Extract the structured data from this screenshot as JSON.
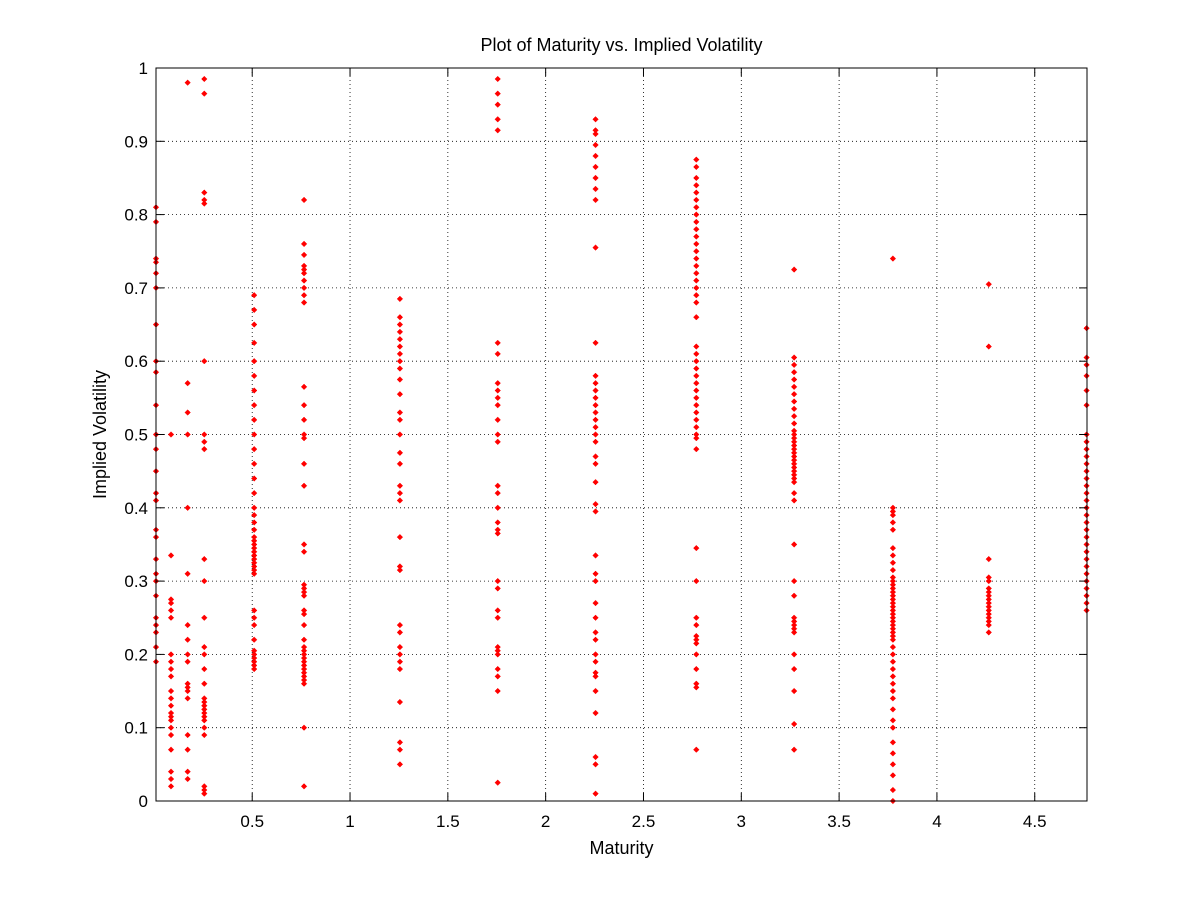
{
  "chart_data": {
    "type": "scatter",
    "title": "Plot of Maturity vs. Implied Volatility",
    "xlabel": "Maturity",
    "ylabel": "Implied Volatility",
    "xlim": [
      0.0082,
      4.7671
    ],
    "ylim": [
      0,
      1
    ],
    "xticks": [
      0.5,
      1,
      1.5,
      2,
      2.5,
      3,
      3.5,
      4,
      4.5
    ],
    "xtick_labels": [
      "0.5",
      "1",
      "1.5",
      "2",
      "2.5",
      "3",
      "3.5",
      "4",
      "4.5"
    ],
    "yticks": [
      0,
      0.1,
      0.2,
      0.3,
      0.4,
      0.5,
      0.6,
      0.7,
      0.8,
      0.9,
      1
    ],
    "ytick_labels": [
      "0",
      "0.1",
      "0.2",
      "0.3",
      "0.4",
      "0.5",
      "0.6",
      "0.7",
      "0.8",
      "0.9",
      "1"
    ],
    "grid": true,
    "marker_color": "#ff0000",
    "series": [
      {
        "name": "Implied Volatility",
        "x": 0.0082,
        "y": [
          0.81,
          0.79,
          0.74,
          0.735,
          0.72,
          0.7,
          0.65,
          0.6,
          0.585,
          0.54,
          0.5,
          0.48,
          0.45,
          0.42,
          0.41,
          0.37,
          0.36,
          0.33,
          0.31,
          0.3,
          0.28,
          0.25,
          0.24,
          0.23,
          0.21,
          0.19
        ]
      },
      {
        "name": "Implied Volatility",
        "x": 0.085,
        "y": [
          0.5,
          0.335,
          0.275,
          0.27,
          0.26,
          0.25,
          0.2,
          0.19,
          0.18,
          0.17,
          0.15,
          0.14,
          0.13,
          0.12,
          0.115,
          0.11,
          0.1,
          0.09,
          0.07,
          0.04,
          0.03,
          0.02
        ]
      },
      {
        "name": "Implied Volatility",
        "x": 0.17,
        "y": [
          0.98,
          0.57,
          0.53,
          0.5,
          0.4,
          0.31,
          0.24,
          0.22,
          0.2,
          0.19,
          0.16,
          0.155,
          0.15,
          0.14,
          0.09,
          0.07,
          0.04,
          0.03
        ]
      },
      {
        "name": "Implied Volatility",
        "x": 0.255,
        "y": [
          0.985,
          0.965,
          0.83,
          0.82,
          0.815,
          0.6,
          0.5,
          0.49,
          0.48,
          0.33,
          0.3,
          0.25,
          0.21,
          0.2,
          0.18,
          0.16,
          0.14,
          0.135,
          0.13,
          0.125,
          0.12,
          0.115,
          0.11,
          0.1,
          0.09,
          0.02,
          0.015,
          0.01
        ]
      },
      {
        "name": "Implied Volatility",
        "x": 0.51,
        "y": [
          0.69,
          0.67,
          0.65,
          0.625,
          0.6,
          0.58,
          0.56,
          0.54,
          0.52,
          0.5,
          0.48,
          0.46,
          0.44,
          0.42,
          0.4,
          0.39,
          0.38,
          0.37,
          0.36,
          0.355,
          0.35,
          0.345,
          0.34,
          0.335,
          0.33,
          0.325,
          0.32,
          0.315,
          0.31,
          0.26,
          0.25,
          0.24,
          0.22,
          0.205,
          0.2,
          0.195,
          0.19,
          0.185,
          0.18
        ]
      },
      {
        "name": "Implied Volatility",
        "x": 0.765,
        "y": [
          0.82,
          0.76,
          0.745,
          0.73,
          0.725,
          0.72,
          0.71,
          0.7,
          0.69,
          0.68,
          0.565,
          0.54,
          0.52,
          0.5,
          0.495,
          0.46,
          0.43,
          0.35,
          0.34,
          0.295,
          0.29,
          0.285,
          0.28,
          0.26,
          0.255,
          0.24,
          0.22,
          0.21,
          0.205,
          0.2,
          0.195,
          0.19,
          0.185,
          0.18,
          0.175,
          0.17,
          0.165,
          0.16,
          0.1,
          0.02
        ]
      },
      {
        "name": "Implied Volatility",
        "x": 1.255,
        "y": [
          0.685,
          0.66,
          0.65,
          0.64,
          0.63,
          0.62,
          0.61,
          0.6,
          0.59,
          0.575,
          0.555,
          0.53,
          0.52,
          0.5,
          0.475,
          0.46,
          0.43,
          0.42,
          0.41,
          0.36,
          0.32,
          0.315,
          0.24,
          0.23,
          0.21,
          0.2,
          0.19,
          0.18,
          0.135,
          0.08,
          0.07,
          0.05
        ]
      },
      {
        "name": "Implied Volatility",
        "x": 1.755,
        "y": [
          0.985,
          0.965,
          0.95,
          0.93,
          0.915,
          0.625,
          0.61,
          0.57,
          0.56,
          0.55,
          0.54,
          0.52,
          0.5,
          0.49,
          0.43,
          0.42,
          0.4,
          0.38,
          0.37,
          0.365,
          0.3,
          0.29,
          0.26,
          0.25,
          0.21,
          0.205,
          0.2,
          0.18,
          0.17,
          0.15,
          0.025
        ]
      },
      {
        "name": "Implied Volatility",
        "x": 2.255,
        "y": [
          0.93,
          0.915,
          0.91,
          0.895,
          0.88,
          0.865,
          0.85,
          0.835,
          0.82,
          0.755,
          0.625,
          0.58,
          0.57,
          0.56,
          0.55,
          0.54,
          0.53,
          0.52,
          0.51,
          0.5,
          0.49,
          0.47,
          0.46,
          0.435,
          0.405,
          0.395,
          0.335,
          0.31,
          0.3,
          0.27,
          0.25,
          0.23,
          0.22,
          0.2,
          0.19,
          0.175,
          0.17,
          0.15,
          0.12,
          0.06,
          0.05,
          0.01
        ]
      },
      {
        "name": "Implied Volatility",
        "x": 2.77,
        "y": [
          0.875,
          0.865,
          0.85,
          0.84,
          0.83,
          0.82,
          0.81,
          0.8,
          0.79,
          0.78,
          0.77,
          0.76,
          0.75,
          0.74,
          0.73,
          0.72,
          0.71,
          0.7,
          0.69,
          0.68,
          0.66,
          0.62,
          0.61,
          0.6,
          0.59,
          0.58,
          0.57,
          0.56,
          0.55,
          0.54,
          0.53,
          0.52,
          0.51,
          0.5,
          0.495,
          0.48,
          0.345,
          0.3,
          0.25,
          0.24,
          0.225,
          0.22,
          0.215,
          0.2,
          0.18,
          0.16,
          0.155,
          0.07
        ]
      },
      {
        "name": "Implied Volatility",
        "x": 3.27,
        "y": [
          0.725,
          0.605,
          0.595,
          0.585,
          0.575,
          0.565,
          0.555,
          0.545,
          0.535,
          0.525,
          0.515,
          0.505,
          0.5,
          0.495,
          0.49,
          0.485,
          0.48,
          0.475,
          0.47,
          0.465,
          0.46,
          0.455,
          0.45,
          0.445,
          0.44,
          0.435,
          0.42,
          0.41,
          0.35,
          0.3,
          0.28,
          0.25,
          0.245,
          0.24,
          0.235,
          0.23,
          0.2,
          0.18,
          0.15,
          0.105,
          0.07
        ]
      },
      {
        "name": "Implied Volatility",
        "x": 3.775,
        "y": [
          0.74,
          0.4,
          0.395,
          0.39,
          0.38,
          0.37,
          0.345,
          0.335,
          0.325,
          0.315,
          0.305,
          0.3,
          0.295,
          0.29,
          0.285,
          0.28,
          0.275,
          0.27,
          0.265,
          0.26,
          0.255,
          0.25,
          0.245,
          0.24,
          0.235,
          0.23,
          0.225,
          0.22,
          0.21,
          0.2,
          0.19,
          0.18,
          0.17,
          0.16,
          0.15,
          0.14,
          0.125,
          0.11,
          0.1,
          0.08,
          0.065,
          0.05,
          0.035,
          0.015,
          0.0
        ]
      },
      {
        "name": "Implied Volatility",
        "x": 4.265,
        "y": [
          0.705,
          0.62,
          0.33,
          0.305,
          0.3,
          0.29,
          0.285,
          0.28,
          0.275,
          0.27,
          0.265,
          0.26,
          0.255,
          0.25,
          0.245,
          0.24,
          0.23
        ]
      },
      {
        "name": "Implied Volatility",
        "x": 4.765,
        "y": [
          0.645,
          0.605,
          0.595,
          0.58,
          0.56,
          0.54,
          0.5,
          0.49,
          0.48,
          0.47,
          0.46,
          0.45,
          0.44,
          0.43,
          0.42,
          0.41,
          0.4,
          0.39,
          0.38,
          0.37,
          0.36,
          0.35,
          0.34,
          0.33,
          0.32,
          0.31,
          0.3,
          0.29,
          0.28,
          0.27,
          0.26
        ]
      }
    ]
  }
}
